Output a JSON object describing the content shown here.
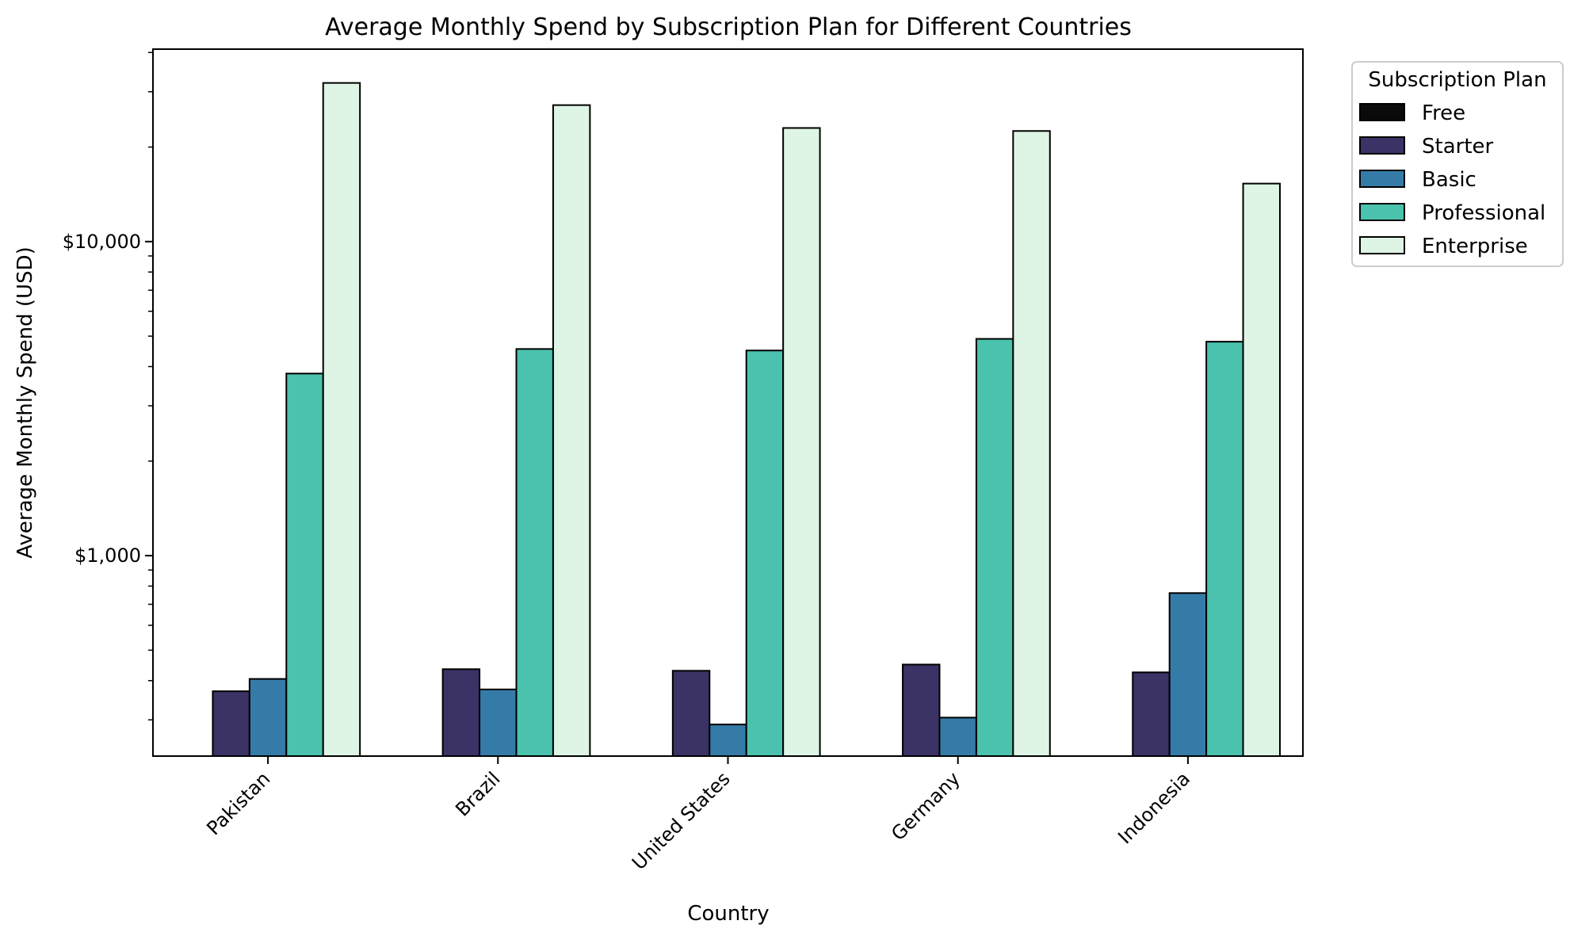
{
  "chart_data": {
    "type": "bar",
    "title": "Average Monthly Spend by Subscription Plan for Different Countries",
    "xlabel": "Country",
    "ylabel": "Average Monthly Spend (USD)",
    "yscale": "log",
    "ylim": [
      230,
      41000
    ],
    "y_tick_labels": [
      {
        "value": 1000,
        "label": "$1,000"
      },
      {
        "value": 10000,
        "label": "$10,000"
      }
    ],
    "categories": [
      "Pakistan",
      "Brazil",
      "United States",
      "Germany",
      "Indonesia"
    ],
    "legend": {
      "title": "Subscription Plan",
      "position": "outside-top-right"
    },
    "series": [
      {
        "name": "Free",
        "color": "#0a0a0a",
        "values": [
          0,
          0,
          0,
          0,
          0
        ]
      },
      {
        "name": "Starter",
        "color": "#3b3266",
        "values": [
          370,
          435,
          430,
          450,
          425
        ]
      },
      {
        "name": "Basic",
        "color": "#357ba8",
        "values": [
          405,
          375,
          290,
          305,
          760
        ]
      },
      {
        "name": "Professional",
        "color": "#4ac2ad",
        "values": [
          3800,
          4550,
          4500,
          4900,
          4800
        ]
      },
      {
        "name": "Enterprise",
        "color": "#def4e4",
        "values": [
          32000,
          27200,
          23000,
          22500,
          15300
        ]
      }
    ]
  }
}
